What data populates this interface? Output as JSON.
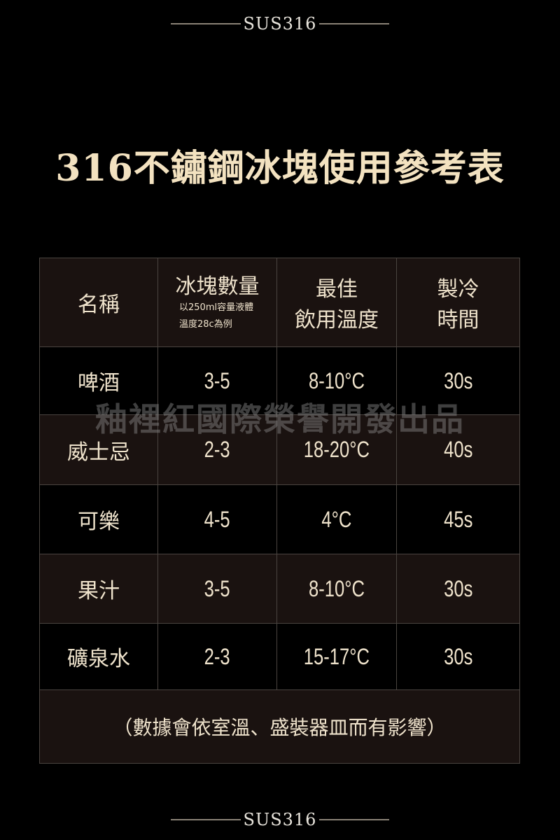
{
  "top_label": "SUS316",
  "bottom_label": "SUS316",
  "title": "316不鏽鋼冰塊使用參考表",
  "watermark": "釉裡紅國際榮譽開發出品",
  "table": {
    "headers": {
      "name": "名稱",
      "count": "冰塊數量",
      "count_note1": "以250ml容量液體",
      "count_note2": "溫度28c為例",
      "temp1": "最佳",
      "temp2": "飲用溫度",
      "time1": "製冷",
      "time2": "時間"
    },
    "rows": [
      {
        "name": "啤酒",
        "count": "3-5",
        "temp": "8-10°C",
        "time": "30s"
      },
      {
        "name": "威士忌",
        "count": "2-3",
        "temp": "18-20°C",
        "time": "40s"
      },
      {
        "name": "可樂",
        "count": "4-5",
        "temp": "4°C",
        "time": "45s"
      },
      {
        "name": "果汁",
        "count": "3-5",
        "temp": "8-10°C",
        "time": "30s"
      },
      {
        "name": "礦泉水",
        "count": "2-3",
        "temp": "15-17°C",
        "time": "30s"
      }
    ],
    "footnote": "（數據會依室溫、盛裝器皿而有影響）"
  }
}
